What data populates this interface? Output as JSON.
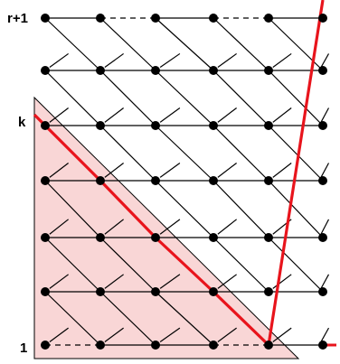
{
  "diagram": {
    "rows": 7,
    "cols": 6,
    "labels": {
      "top": "r+1",
      "middle": "k",
      "bottom": "1"
    },
    "dashed_segments": {
      "top_row": [
        [
          1,
          2
        ],
        [
          3,
          4
        ]
      ],
      "bottom_row": [
        [
          0,
          1
        ],
        [
          3,
          4
        ]
      ]
    },
    "colors": {
      "node": "#000000",
      "edge": "#000000",
      "highlight_path": "#e8141c",
      "shaded_region": "#f9d6d6"
    }
  }
}
